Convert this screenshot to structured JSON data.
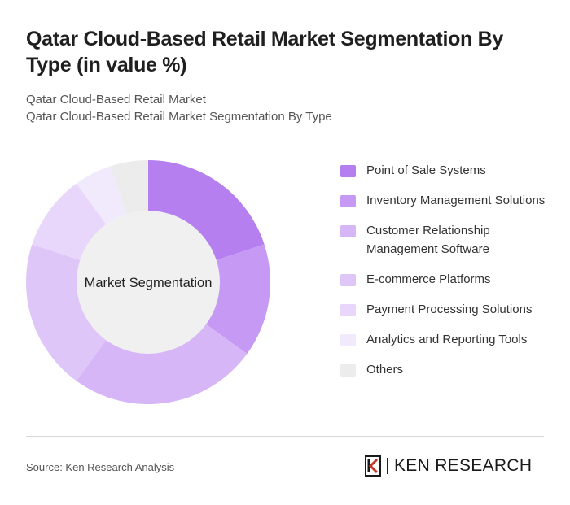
{
  "header": {
    "title": "Qatar Cloud-Based Retail Market Segmentation By Type (in value %)",
    "subtitle_line1": "Qatar Cloud-Based Retail Market",
    "subtitle_line2": "Qatar Cloud-Based Retail Market Segmentation By Type"
  },
  "chart_data": {
    "type": "pie",
    "donut": true,
    "center_label": "Market Segmentation",
    "categories": [
      "Point of Sale Systems",
      "Inventory Management Solutions",
      "Customer Relationship Management Software",
      "E-commerce Platforms",
      "Payment Processing Solutions",
      "Analytics and Reporting Tools",
      "Others"
    ],
    "values": [
      20,
      15,
      25,
      20,
      10,
      5,
      5
    ],
    "colors": [
      "#b57ff0",
      "#c69af4",
      "#d6b6f7",
      "#dec6f8",
      "#e8d7fa",
      "#f1e9fc",
      "#ececec"
    ],
    "legend_position": "right"
  },
  "legend": {
    "items": [
      {
        "label": "Point of Sale Systems",
        "color": "#b57ff0"
      },
      {
        "label": "Inventory Management Solutions",
        "color": "#c69af4"
      },
      {
        "label": "Customer Relationship Management Software",
        "color": "#d6b6f7"
      },
      {
        "label": "E-commerce Platforms",
        "color": "#dec6f8"
      },
      {
        "label": "Payment Processing Solutions",
        "color": "#e8d7fa"
      },
      {
        "label": "Analytics and Reporting Tools",
        "color": "#f1e9fc"
      },
      {
        "label": "Others",
        "color": "#ececec"
      }
    ]
  },
  "footer": {
    "source": "Source: Ken Research Analysis",
    "brand": "KEN RESEARCH",
    "brand_icon": "ken-research-logo-icon"
  }
}
